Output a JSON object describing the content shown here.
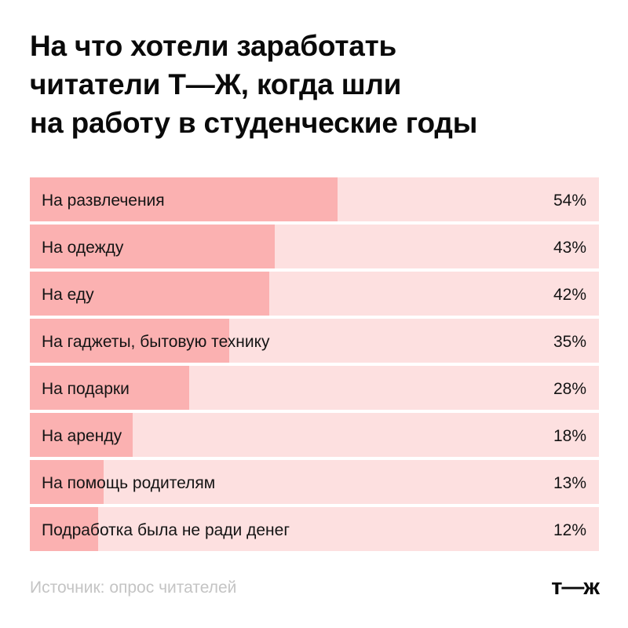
{
  "title_lines": [
    "На что хотели заработать",
    "читатели Т—Ж, когда шли",
    "на работу в студенческие годы"
  ],
  "source": "Источник: опрос читателей",
  "logo": "т—ж",
  "colors": {
    "bar": "#fbb1b1",
    "track": "#fde0e0",
    "text": "#141414",
    "source_text": "#c4c4c4"
  },
  "chart_data": {
    "type": "bar",
    "orientation": "horizontal",
    "title": "На что хотели заработать читатели Т—Ж, когда шли на работу в студенческие годы",
    "unit": "%",
    "xlim": [
      0,
      100
    ],
    "categories": [
      "На развлечения",
      "На одежду",
      "На еду",
      "На гаджеты, бытовую технику",
      "На подарки",
      "На аренду",
      "На помощь родителям",
      "Подработка была не ради денег"
    ],
    "values": [
      54,
      43,
      42,
      35,
      28,
      18,
      13,
      12
    ],
    "value_labels": [
      "54%",
      "43%",
      "42%",
      "35%",
      "28%",
      "18%",
      "13%",
      "12%"
    ]
  }
}
